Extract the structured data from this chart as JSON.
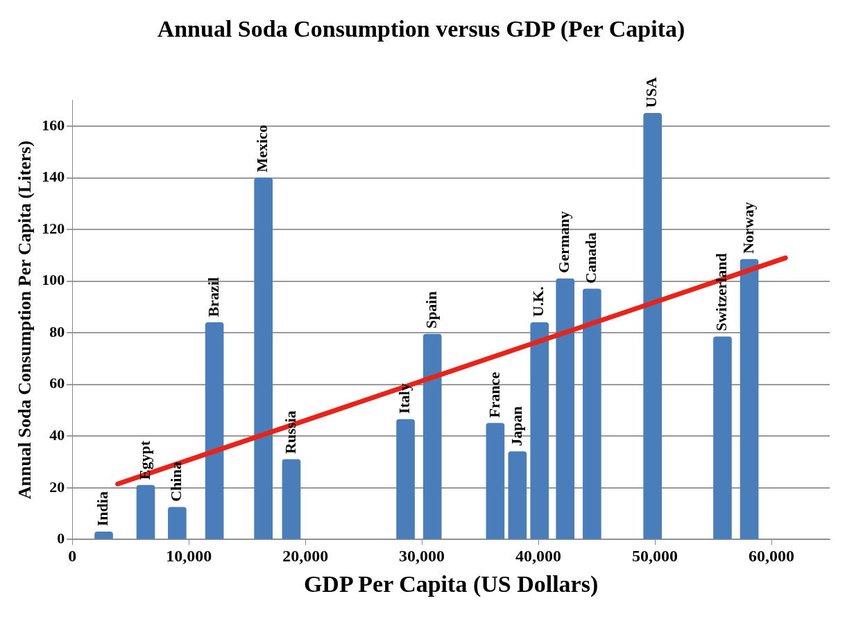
{
  "chart_data": {
    "type": "bar",
    "title": "Annual Soda Consumption versus GDP (Per Capita)",
    "xlabel": "GDP Per Capita (US Dollars)",
    "ylabel": "Annual Soda Consumption Per Capita (Liters)",
    "x": [
      2700,
      6300,
      9000,
      12200,
      16400,
      18800,
      28600,
      30900,
      36300,
      38200,
      40100,
      42300,
      44600,
      49800,
      55800,
      58100
    ],
    "series": [
      {
        "color": "#4a7ebb",
        "values": [
          3,
          21,
          12.5,
          84,
          140,
          31,
          46.5,
          79.5,
          45,
          34,
          84,
          101,
          97,
          165,
          78.5,
          108.5
        ]
      },
      {
        "type": "line",
        "color": "#e8231a",
        "x": [
          3900,
          61200
        ],
        "values": [
          21.5,
          109
        ]
      }
    ],
    "annotations": [
      {
        "text": "India",
        "x": 2700,
        "y": 3
      },
      {
        "text": "Egypt",
        "x": 6300,
        "y": 21
      },
      {
        "text": "China",
        "x": 9000,
        "y": 12.5
      },
      {
        "text": "Brazil",
        "x": 12200,
        "y": 84
      },
      {
        "text": "Mexico",
        "x": 16400,
        "y": 140
      },
      {
        "text": "Russia",
        "x": 18800,
        "y": 31
      },
      {
        "text": "Italy",
        "x": 28600,
        "y": 46.5
      },
      {
        "text": "Spain",
        "x": 30900,
        "y": 79.5
      },
      {
        "text": "France",
        "x": 36300,
        "y": 45
      },
      {
        "text": "Japan",
        "x": 38200,
        "y": 34
      },
      {
        "text": "U.K.",
        "x": 40100,
        "y": 84
      },
      {
        "text": "Germany",
        "x": 42300,
        "y": 101
      },
      {
        "text": "Canada",
        "x": 44600,
        "y": 97
      },
      {
        "text": "USA",
        "x": 49800,
        "y": 165
      },
      {
        "text": "Switzerland",
        "x": 55800,
        "y": 78.5
      },
      {
        "text": "Norway",
        "x": 58100,
        "y": 108.5
      }
    ],
    "xlim": [
      0,
      65000
    ],
    "xticks": [
      0,
      {
        "value": 10000,
        "label": "10,000"
      },
      {
        "value": 20000,
        "label": "20,000"
      },
      {
        "value": 30000,
        "label": "30,000"
      },
      {
        "value": 40000,
        "label": "40,000"
      },
      {
        "value": 50000,
        "label": "50,000"
      },
      {
        "value": 60000,
        "label": "60,000"
      }
    ],
    "ylim": [
      0,
      170
    ],
    "yticks": [
      0,
      20,
      40,
      60,
      80,
      100,
      120,
      140,
      160
    ],
    "grid": "y",
    "marker": "none",
    "line_style": "solid"
  }
}
